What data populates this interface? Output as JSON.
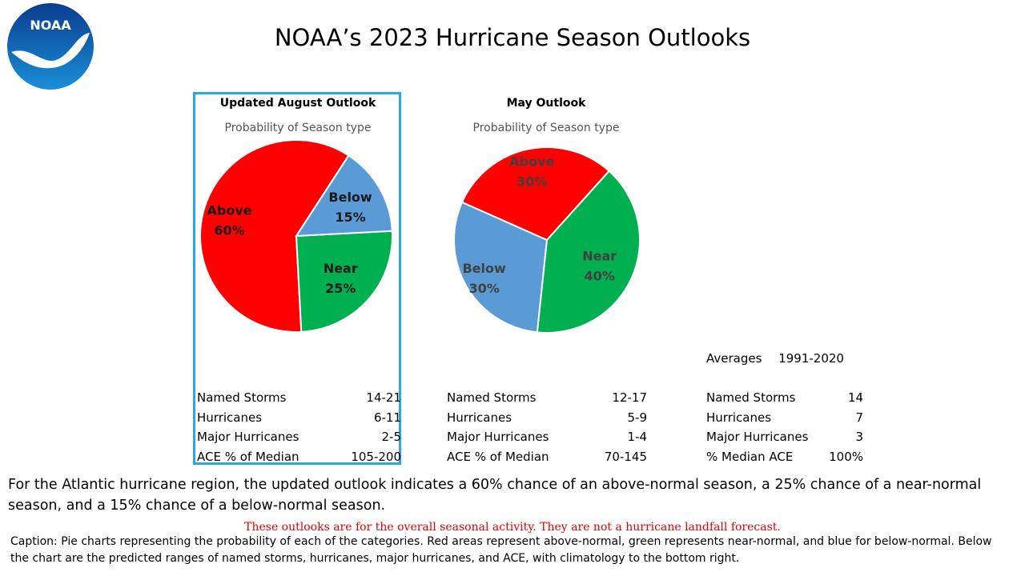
{
  "logo": {
    "text": "NOAA"
  },
  "page": {
    "title": "NOAA’s 2023 Hurricane Season Outlooks"
  },
  "chart_data": [
    {
      "type": "pie",
      "title": "Updated August Outlook",
      "subtitle": "Probability of Season type",
      "highlighted": true,
      "slices": [
        {
          "label": "Above",
          "value": 60,
          "display": "60%",
          "color": "#ff0000"
        },
        {
          "label": "Near",
          "value": 25,
          "display": "25%",
          "color": "#00b050"
        },
        {
          "label": "Below",
          "value": 15,
          "display": "15%",
          "color": "#5b9bd5"
        }
      ]
    },
    {
      "type": "pie",
      "title": "May Outlook",
      "subtitle": "Probability of Season type",
      "highlighted": false,
      "slices": [
        {
          "label": "Above",
          "value": 30,
          "display": "30%",
          "color": "#ff0000"
        },
        {
          "label": "Below",
          "value": 30,
          "display": "30%",
          "color": "#5b9bd5"
        },
        {
          "label": "Near",
          "value": 40,
          "display": "40%",
          "color": "#00b050"
        }
      ]
    }
  ],
  "stats": {
    "august": [
      {
        "label": "Named Storms",
        "value": "14-21"
      },
      {
        "label": "Hurricanes",
        "value": "6-11"
      },
      {
        "label": "Major Hurricanes",
        "value": "2-5"
      },
      {
        "label": "ACE % of Median",
        "value": "105-200"
      }
    ],
    "may": [
      {
        "label": "Named Storms",
        "value": "12-17"
      },
      {
        "label": "Hurricanes",
        "value": "5-9"
      },
      {
        "label": "Major Hurricanes",
        "value": "1-4"
      },
      {
        "label": "ACE % of Median",
        "value": "70-145"
      }
    ],
    "averages": {
      "heading": "Averages",
      "period": "1991-2020",
      "rows": [
        {
          "label": "Named Storms",
          "value": "14"
        },
        {
          "label": "Hurricanes",
          "value": "7"
        },
        {
          "label": "Major Hurricanes",
          "value": "3"
        },
        {
          "label": "% Median ACE",
          "value": "100%"
        }
      ]
    }
  },
  "summary": "For the Atlantic hurricane region, the updated outlook indicates a 60% chance of an above-normal season, a 25% chance of a near-normal season, and a 15% chance of a below-normal season.",
  "disclaimer": "These outlooks are for the overall seasonal activity.   They are not a hurricane landfall  forecast.",
  "caption": "Caption: Pie charts representing the probability of each of the categories. Red areas represent above-normal, green represents near-normal, and blue for below-normal. Below the chart are the predicted ranges of named storms, hurricanes, major hurricanes, and ACE, with climatology to the bottom right.",
  "colors": {
    "box_border": "#29a9e0",
    "logo_blue": "#0a5db8",
    "disclaimer": "#e00000"
  }
}
